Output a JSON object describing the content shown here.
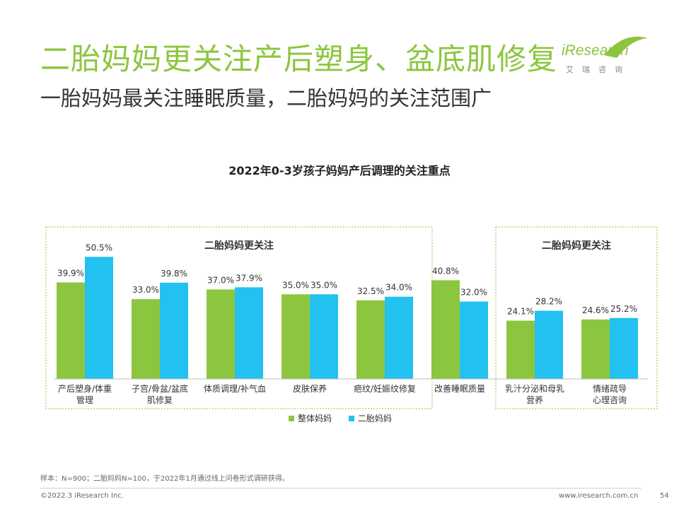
{
  "header": {
    "title": "二胎妈妈更关注产后塑身、盆底肌修复",
    "subtitle": "一胎妈妈最关注睡眠质量，二胎妈妈的关注范围广"
  },
  "logo": {
    "brand": "iResearch",
    "sub": "艾瑞咨询"
  },
  "chart_data": {
    "type": "bar",
    "title": "2022年0-3岁孩子妈妈产后调理的关注重点",
    "categories": [
      [
        "产后塑身/体重",
        "管理"
      ],
      [
        "子宫/骨盆/盆底",
        "肌修复"
      ],
      [
        "体质调理/补气血"
      ],
      [
        "皮肤保养"
      ],
      [
        "疤纹/妊娠纹修复"
      ],
      [
        "改善睡眠质量"
      ],
      [
        "乳汁分泌和母乳",
        "营养"
      ],
      [
        "情绪疏导",
        "心理咨询"
      ]
    ],
    "series": [
      {
        "name": "整体妈妈",
        "color": "#8cc63f",
        "values": [
          39.9,
          33.0,
          37.0,
          35.0,
          32.5,
          40.8,
          24.1,
          24.6
        ]
      },
      {
        "name": "二胎妈妈",
        "color": "#22c1f0",
        "values": [
          50.5,
          39.8,
          37.9,
          35.0,
          34.0,
          32.0,
          28.2,
          25.2
        ]
      }
    ],
    "value_format": "{v}%",
    "ylim": [
      0,
      55
    ],
    "highlight_groups": [
      {
        "label": "二胎妈妈更关注",
        "from": 0,
        "to": 4
      },
      {
        "label": "二胎妈妈更关注",
        "from": 6,
        "to": 7
      }
    ]
  },
  "footer": {
    "note": "样本：N=900；二胎妈妈N=100，于2022年1月通过线上问卷形式调研获得。",
    "copyright": "©2022.3 iResearch Inc.",
    "website": "www.iresearch.com.cn",
    "page": "54"
  }
}
